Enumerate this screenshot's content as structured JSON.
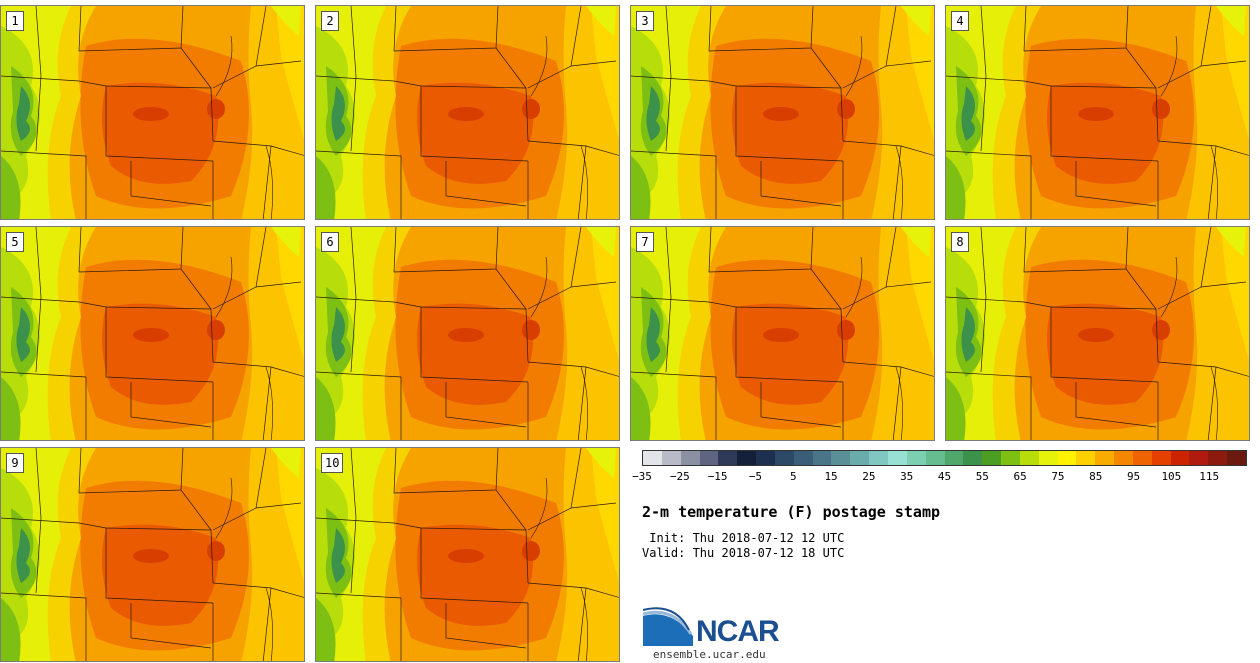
{
  "panels": [
    {
      "label": "1"
    },
    {
      "label": "2"
    },
    {
      "label": "3"
    },
    {
      "label": "4"
    },
    {
      "label": "5"
    },
    {
      "label": "6"
    },
    {
      "label": "7"
    },
    {
      "label": "8"
    },
    {
      "label": "9"
    },
    {
      "label": "10"
    }
  ],
  "title": "2-m temperature (F) postage stamp",
  "init": " Init: Thu 2018-07-12 12 UTC",
  "valid": "Valid: Thu 2018-07-12 18 UTC",
  "logo": {
    "text": "NCAR",
    "site": "ensemble.ucar.edu"
  },
  "colorbar": {
    "colors": [
      "#e2e4ea",
      "#b8bbc7",
      "#8c90a3",
      "#5f6580",
      "#2e3a57",
      "#142039",
      "#1d3050",
      "#2c4a66",
      "#3b5e78",
      "#4a7487",
      "#5a8f97",
      "#6aabab",
      "#7fc7c0",
      "#98e0d3",
      "#7ccfb0",
      "#66bd8f",
      "#4fa76c",
      "#3c924b",
      "#4c9e22",
      "#7ebf13",
      "#b7de0b",
      "#e6f20a",
      "#fff200",
      "#ffd000",
      "#f9ab00",
      "#f58700",
      "#f06400",
      "#e64000",
      "#cd2400",
      "#b01b10",
      "#8c1a0e",
      "#6a1a0f"
    ],
    "min": -35,
    "max": 125,
    "tick_values": [
      -35,
      -25,
      -15,
      -5,
      5,
      15,
      25,
      35,
      45,
      55,
      65,
      75,
      85,
      95,
      105,
      115
    ],
    "tick_labels": [
      "−35",
      "−25",
      "−15",
      "−5",
      "5",
      "15",
      "25",
      "35",
      "45",
      "55",
      "65",
      "75",
      "85",
      "95",
      "105",
      "115"
    ]
  }
}
